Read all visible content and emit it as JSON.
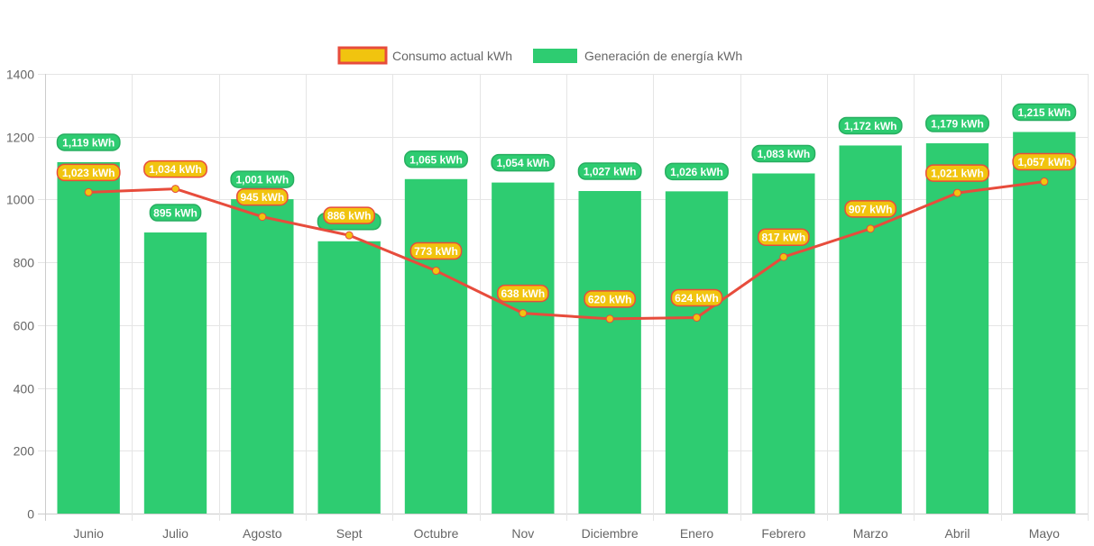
{
  "chart_data": {
    "type": "bar",
    "title": "",
    "xlabel": "",
    "ylabel": "",
    "ylim": [
      0,
      1400
    ],
    "yticks": [
      "0",
      "200",
      "400",
      "600",
      "800",
      "1000",
      "1200",
      "1400"
    ],
    "ytick_values": [
      0,
      200,
      400,
      600,
      800,
      1000,
      1200,
      1400
    ],
    "grid": true,
    "legend_position": "top-center",
    "categories": [
      "Junio",
      "Julio",
      "Agosto",
      "Sept",
      "Octubre",
      "Nov",
      "Diciembre",
      "Enero",
      "Febrero",
      "Marzo",
      "Abril",
      "Mayo"
    ],
    "series": [
      {
        "name": "Consumo actual kWh",
        "type": "line",
        "color": "#e74c3c",
        "fill": "#f1c40f",
        "values": [
          1023,
          1034,
          945,
          886,
          773,
          638,
          620,
          624,
          817,
          907,
          1021,
          1057
        ],
        "labels": [
          "1,023 kWh",
          "1,034 kWh",
          "945 kWh",
          "886 kWh",
          "773 kWh",
          "638 kWh",
          "620 kWh",
          "624 kWh",
          "817 kWh",
          "907 kWh",
          "1,021 kWh",
          "1,057 kWh"
        ]
      },
      {
        "name": "Generación de energía kWh",
        "type": "bar",
        "color": "#2ecc71",
        "values": [
          1119,
          895,
          1001,
          867,
          1065,
          1054,
          1027,
          1026,
          1083,
          1172,
          1179,
          1215
        ],
        "labels": [
          "1,119 kWh",
          "895 kWh",
          "1,001 kWh",
          "",
          "1,065 kWh",
          "1,054 kWh",
          "1,027 kWh",
          "1,026 kWh",
          "1,083 kWh",
          "1,172 kWh",
          "1,179 kWh",
          "1,215 kWh"
        ]
      }
    ]
  },
  "legend": {
    "items": [
      {
        "label": "Consumo actual kWh",
        "fill": "#f1c40f",
        "stroke": "#e74c3c"
      },
      {
        "label": "Generación de energía kWh",
        "fill": "#2ecc71",
        "stroke": "#2ecc71"
      }
    ]
  }
}
